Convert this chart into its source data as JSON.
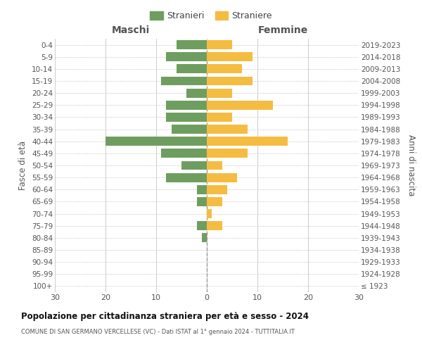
{
  "age_groups": [
    "100+",
    "95-99",
    "90-94",
    "85-89",
    "80-84",
    "75-79",
    "70-74",
    "65-69",
    "60-64",
    "55-59",
    "50-54",
    "45-49",
    "40-44",
    "35-39",
    "30-34",
    "25-29",
    "20-24",
    "15-19",
    "10-14",
    "5-9",
    "0-4"
  ],
  "birth_years": [
    "≤ 1923",
    "1924-1928",
    "1929-1933",
    "1934-1938",
    "1939-1943",
    "1944-1948",
    "1949-1953",
    "1954-1958",
    "1959-1963",
    "1964-1968",
    "1969-1973",
    "1974-1978",
    "1979-1983",
    "1984-1988",
    "1989-1993",
    "1994-1998",
    "1999-2003",
    "2004-2008",
    "2009-2013",
    "2014-2018",
    "2019-2023"
  ],
  "males": [
    0,
    0,
    0,
    0,
    1,
    2,
    0,
    2,
    2,
    8,
    5,
    9,
    20,
    7,
    8,
    8,
    4,
    9,
    6,
    8,
    6
  ],
  "females": [
    0,
    0,
    0,
    0,
    0,
    3,
    1,
    3,
    4,
    6,
    3,
    8,
    16,
    8,
    5,
    13,
    5,
    9,
    7,
    9,
    5
  ],
  "male_color": "#6e9e5f",
  "female_color": "#f5bc42",
  "title": "Popolazione per cittadinanza straniera per età e sesso - 2024",
  "subtitle": "COMUNE DI SAN GERMANO VERCELLESE (VC) - Dati ISTAT al 1° gennaio 2024 - TUTTITALIA.IT",
  "xlabel_left": "Maschi",
  "xlabel_right": "Femmine",
  "ylabel_left": "Fasce di età",
  "ylabel_right": "Anni di nascita",
  "legend_male": "Stranieri",
  "legend_female": "Straniere",
  "xlim": 30,
  "background_color": "#ffffff",
  "grid_color": "#cccccc",
  "bar_height": 0.75
}
